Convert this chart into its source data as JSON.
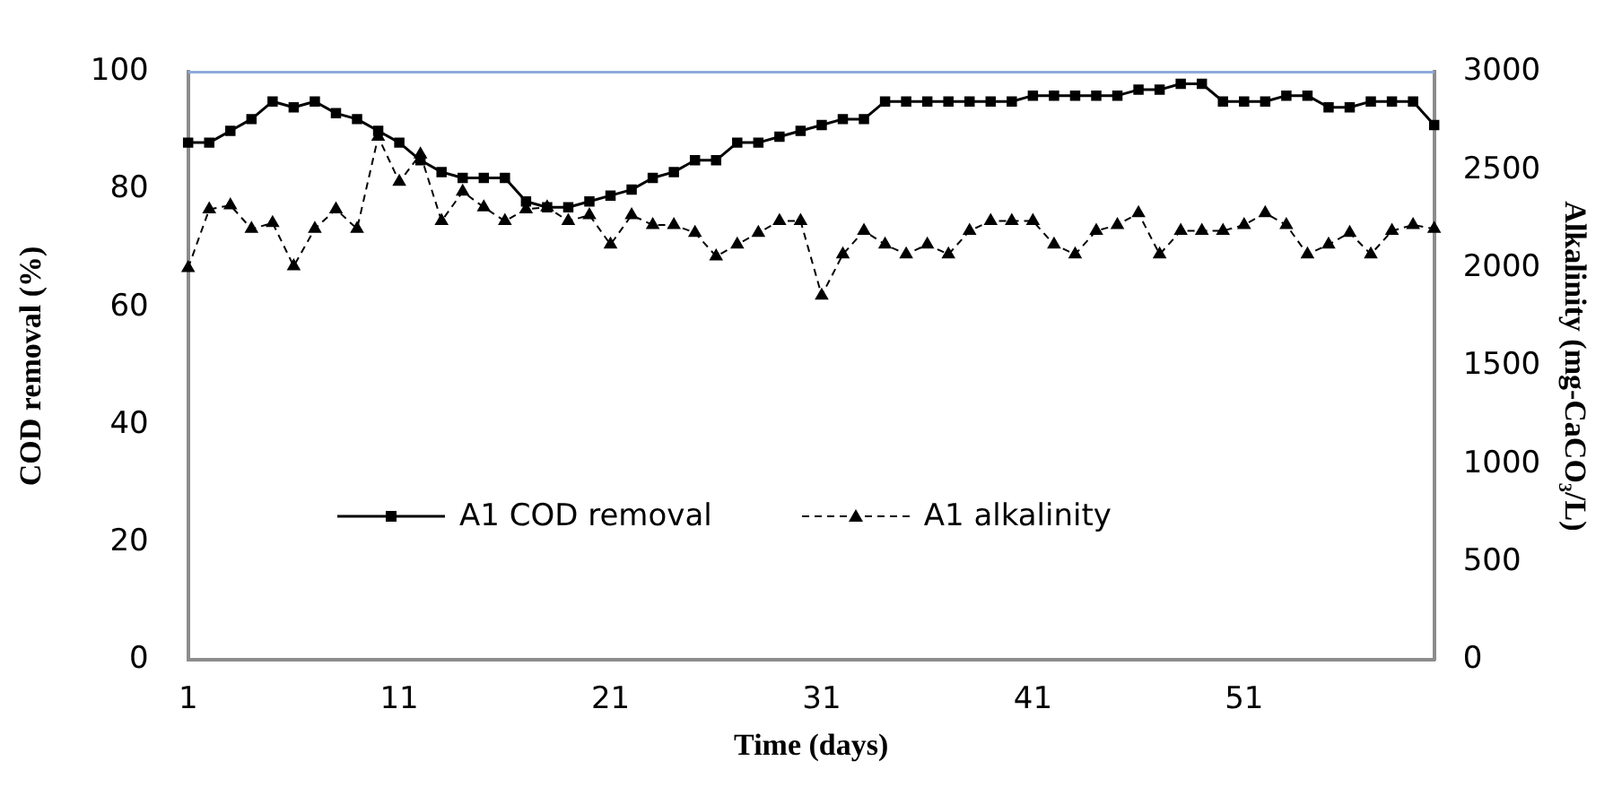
{
  "chart_data": {
    "type": "line",
    "xlabel": "Time (days)",
    "ylabel": "COD removal (%)",
    "y2label": "Alkalinity (mg-CaCO₃/L)",
    "categories": [
      "1",
      null,
      null,
      null,
      null,
      null,
      null,
      null,
      null,
      null,
      "11",
      null,
      null,
      null,
      null,
      null,
      null,
      null,
      null,
      null,
      "21",
      null,
      null,
      null,
      null,
      null,
      null,
      null,
      null,
      null,
      "31",
      null,
      null,
      null,
      null,
      null,
      null,
      null,
      null,
      null,
      "41",
      null,
      null,
      null,
      null,
      null,
      null,
      null,
      null,
      null,
      "51",
      null,
      null,
      null,
      null,
      null,
      null,
      null,
      null,
      null
    ],
    "series": [
      {
        "name": "A1 COD removal",
        "color": "#000000",
        "marker": "square",
        "line_style": "solid",
        "values": [
          88,
          88,
          90,
          92,
          95,
          94,
          95,
          93,
          92,
          90,
          88,
          85,
          83,
          82,
          82,
          82,
          78,
          77,
          77,
          78,
          79,
          80,
          82,
          83,
          85,
          85,
          88,
          88,
          89,
          90,
          91,
          92,
          92,
          95,
          95,
          95,
          95,
          95,
          95,
          95,
          96,
          96,
          96,
          96,
          96,
          97,
          97,
          98,
          98,
          95,
          95,
          95,
          96,
          96,
          94,
          94,
          95,
          95,
          95,
          91
        ]
      },
      {
        "name": "A1 alkalinity",
        "color": "#000000",
        "marker": "triangle",
        "line_style": "dashed",
        "axis": "y2",
        "values": [
          2000,
          2300,
          2320,
          2200,
          2230,
          2010,
          2200,
          2300,
          2200,
          2670,
          2440,
          2580,
          2240,
          2390,
          2310,
          2240,
          2300,
          2310,
          2240,
          2270,
          2120,
          2270,
          2220,
          2220,
          2180,
          2060,
          2120,
          2180,
          2240,
          2240,
          1860,
          2070,
          2190,
          2120,
          2070,
          2120,
          2070,
          2190,
          2240,
          2240,
          2240,
          2120,
          2070,
          2190,
          2220,
          2280,
          2070,
          2190,
          2190,
          2190,
          2220,
          2280,
          2220,
          2070,
          2120,
          2180,
          2070,
          2190,
          2220,
          2200
        ]
      }
    ],
    "ylim": [
      0,
      100
    ],
    "yticks": [
      0,
      20,
      40,
      60,
      80,
      100
    ],
    "y2lim": [
      0,
      3000
    ],
    "y2ticks": [
      0,
      500,
      1000,
      1500,
      2000,
      2500,
      3000
    ],
    "grid": false,
    "legend": "bottom"
  }
}
